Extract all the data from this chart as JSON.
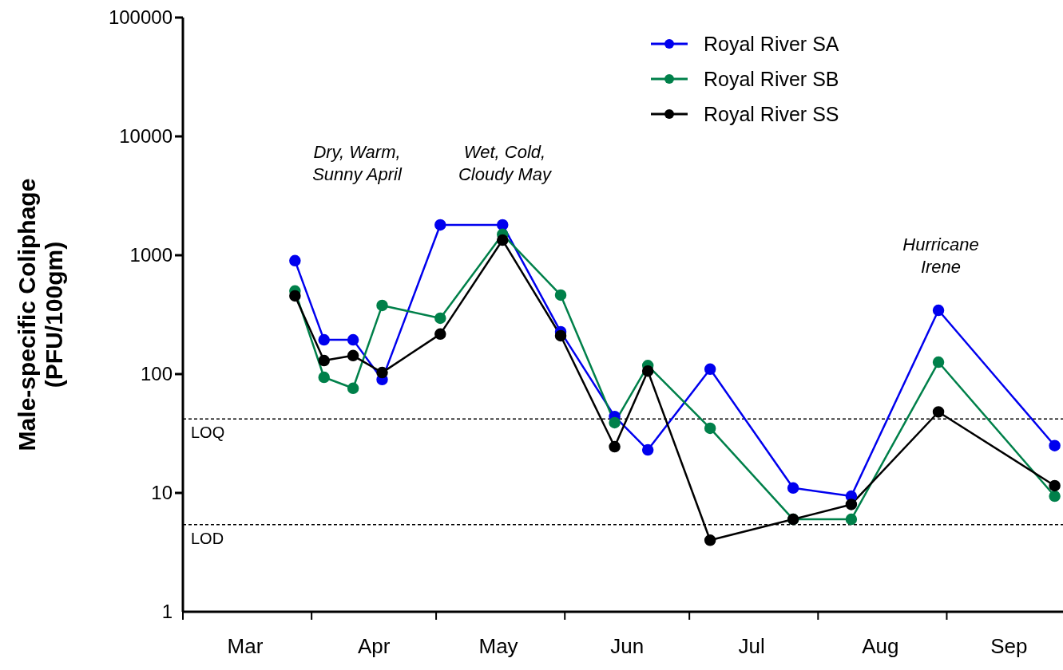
{
  "chart_data": {
    "type": "line",
    "ylabel": "Male-specific Coliphage\n(PFU/100gm)",
    "log": "y",
    "ylim": [
      1,
      100000
    ],
    "yticks": [
      1,
      10,
      100,
      1000,
      10000,
      100000
    ],
    "xlim": [
      "--03-01",
      "--09-29"
    ],
    "xticks": [
      {
        "value": "--03-01",
        "label": null
      },
      {
        "value": "--03-16",
        "label": "Mar"
      },
      {
        "value": "--04-01",
        "label": null
      },
      {
        "value": "--04-16",
        "label": "Apr"
      },
      {
        "value": "--05-01",
        "label": null
      },
      {
        "value": "--05-16",
        "label": "May"
      },
      {
        "value": "--06-01",
        "label": null
      },
      {
        "value": "--06-16",
        "label": "Jun"
      },
      {
        "value": "--07-01",
        "label": null
      },
      {
        "value": "--07-16",
        "label": "Jul"
      },
      {
        "value": "--08-01",
        "label": null
      },
      {
        "value": "--08-16",
        "label": "Aug"
      },
      {
        "value": "--09-01",
        "label": null
      },
      {
        "value": "--09-16",
        "label": "Sep"
      }
    ],
    "x": [
      "--03-28",
      "--04-04",
      "--04-11",
      "--04-18",
      "--05-02",
      "--05-17",
      "--05-31",
      "--06-13",
      "--06-21",
      "--07-06",
      "--07-26",
      "--08-09",
      "--08-30",
      "--09-27"
    ],
    "series": [
      {
        "name": "Royal River SA",
        "color": "#0000ee",
        "values": [
          900,
          194,
          194,
          90,
          1800,
          1800,
          227,
          44,
          23,
          110,
          11,
          9.4,
          344,
          25
        ]
      },
      {
        "name": "Royal River SB",
        "color": "#00804a",
        "values": [
          500,
          94,
          76,
          378,
          295,
          1500,
          462,
          39,
          118,
          35,
          6,
          6,
          126,
          9.4
        ]
      },
      {
        "name": "Royal River SS",
        "color": "#000000",
        "values": [
          455,
          130,
          143,
          103,
          217,
          1340,
          210,
          24.5,
          106,
          4,
          6,
          8,
          48,
          11.5
        ]
      }
    ],
    "marker": "circle",
    "line_style": "solid",
    "legend": "top right",
    "grid": false,
    "ref_lines": [
      {
        "axis": "y",
        "value": 42,
        "label": "LOQ",
        "line_style": "dashed",
        "color": "#000000"
      },
      {
        "axis": "y",
        "value": 5.4,
        "label": "LOD",
        "line_style": "dashed",
        "color": "#000000"
      }
    ],
    "annotations": [
      "Dry, Warm,\nSunny April",
      "Wet, Cold,\nCloudy May",
      "Hurricane\nIrene"
    ]
  }
}
